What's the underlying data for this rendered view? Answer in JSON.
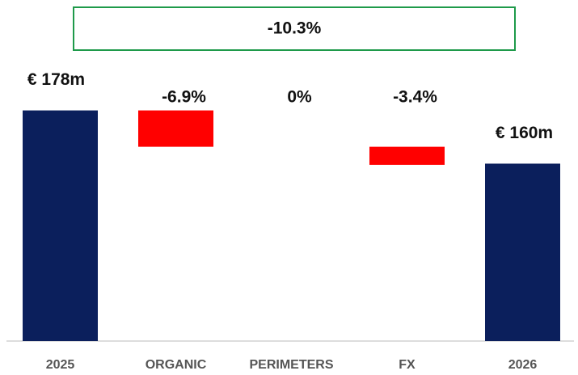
{
  "chart_data": {
    "type": "waterfall",
    "categories": [
      "2025",
      "ORGANIC",
      "PERIMETERS",
      "FX",
      "2026"
    ],
    "values": [
      178,
      -12.3,
      0,
      -6.1,
      160
    ],
    "value_labels": [
      "€ 178m",
      null,
      null,
      null,
      "€ 160m"
    ],
    "totals": [
      true,
      false,
      false,
      false,
      true
    ],
    "changes": [
      null,
      -6.9,
      0,
      -3.4,
      null
    ],
    "change_labels": [
      null,
      "-6.9%",
      "0%",
      "-3.4%",
      null
    ],
    "total_change": -10.3,
    "total_change_label": "-10.3%",
    "total_color": "#0b1f5c",
    "decrease_color": "#ff0000",
    "banner_color": "#1e9a4a",
    "ylim": [
      100,
      185
    ]
  }
}
